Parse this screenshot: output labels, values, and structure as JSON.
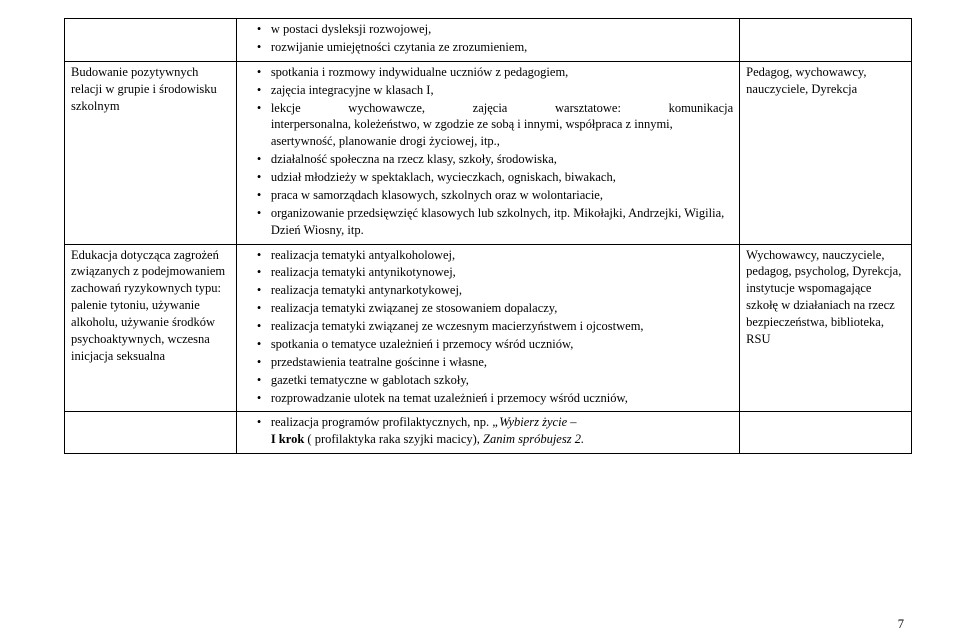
{
  "row0": {
    "col1": "",
    "items": [
      "w postaci dysleksji rozwojowej,",
      "rozwijanie umiejętności czytania ze zrozumieniem,"
    ],
    "col3": ""
  },
  "row1": {
    "col1": "Budowanie pozytywnych relacji w grupie i środowisku szkolnym",
    "items": [
      "spotkania i rozmowy indywidualne uczniów z pedagogiem,",
      "zajęcia integracyjne w klasach I,",
      {
        "first": "lekcje wychowawcze, zajęcia warsztatowe: komunikacja",
        "rest": "interpersonalna, koleżeństwo, w zgodzie ze sobą i innymi, współpraca z innymi, asertywność, planowanie drogi życiowej, itp.,"
      },
      "działalność społeczna na rzecz klasy, szkoły, środowiska,",
      "udział młodzieży w spektaklach, wycieczkach, ogniskach, biwakach,",
      "praca w samorządach klasowych, szkolnych oraz w wolontariacie,",
      {
        "text": "organizowanie przedsięwzięć klasowych lub szkolnych, itp. Mikołajki, Andrzejki, Wigilia, Dzień Wiosny, itp."
      }
    ],
    "col3": "Pedagog, wychowawcy, nauczyciele, Dyrekcja"
  },
  "row2": {
    "col1": "Edukacja dotycząca zagrożeń związanych z podejmowaniem zachowań ryzykownych typu: palenie tytoniu, używanie alkoholu, używanie środków psychoaktywnych, wczesna inicjacja seksualna",
    "items": [
      "realizacja tematyki antyalkoholowej,",
      "realizacja tematyki antynikotynowej,",
      "realizacja tematyki antynarkotykowej,",
      "realizacja tematyki związanej ze stosowaniem dopalaczy,",
      {
        "text": "realizacja tematyki związanej ze wczesnym macierzyństwem i ojcostwem,"
      },
      "spotkania o tematyce uzależnień i przemocy wśród uczniów,",
      "przedstawienia teatralne gościnne i własne,",
      "gazetki tematyczne w gablotach szkoły,",
      "rozprowadzanie ulotek na temat uzależnień i przemocy wśród uczniów,"
    ],
    "col3": "Wychowawcy, nauczyciele, pedagog, psycholog, Dyrekcja, instytucje wspomagające szkołę w działaniach na rzecz bezpieczeństwa, biblioteka, RSU"
  },
  "row3": {
    "prefix": "realizacja programów profilaktycznych, np. ",
    "em1": "„Wybierz życie –",
    "bold": "I krok",
    "mid": " ( profilaktyka raka szyjki macicy), ",
    "em2": "Zanim spróbujesz 2."
  },
  "pageNumber": "7"
}
